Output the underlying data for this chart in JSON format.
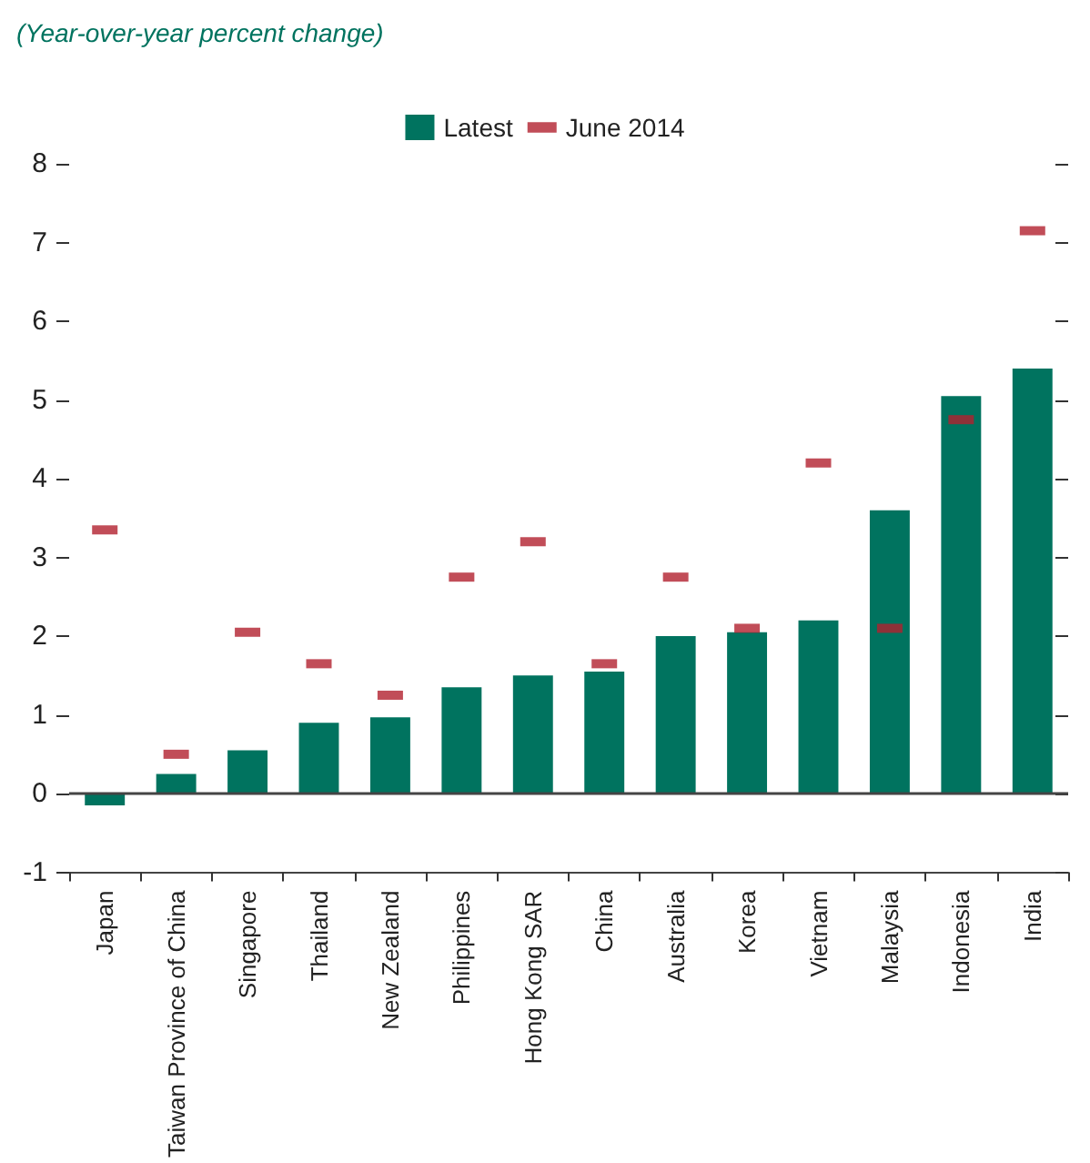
{
  "chart_data": {
    "type": "bar",
    "title": "(Year-over-year percent change)",
    "categories": [
      "Japan",
      "Taiwan Province of China",
      "Singapore",
      "Thailand",
      "New Zealand",
      "Philippines",
      "Hong Kong SAR",
      "China",
      "Australia",
      "Korea",
      "Vietnam",
      "Malaysia",
      "Indonesia",
      "India"
    ],
    "series": [
      {
        "name": "Latest",
        "color": "#00735f",
        "values": [
          -0.15,
          0.25,
          0.55,
          0.9,
          0.97,
          1.35,
          1.5,
          1.55,
          2.0,
          2.05,
          2.2,
          3.6,
          5.05,
          5.4
        ]
      },
      {
        "name": "June 2014",
        "type": "scatter",
        "color": "#b2202e",
        "values": [
          3.35,
          0.5,
          2.05,
          1.65,
          1.25,
          2.75,
          3.2,
          1.65,
          2.75,
          2.1,
          4.2,
          2.1,
          4.75,
          7.15
        ]
      }
    ],
    "ylim": [
      -1,
      8
    ],
    "yticks": [
      -1,
      0,
      1,
      2,
      3,
      4,
      5,
      6,
      7,
      8
    ],
    "ref_lines": [
      {
        "axis": "y",
        "value": 0,
        "color": "#444444"
      }
    ],
    "grid": false,
    "legend": "top",
    "marker": "square"
  }
}
